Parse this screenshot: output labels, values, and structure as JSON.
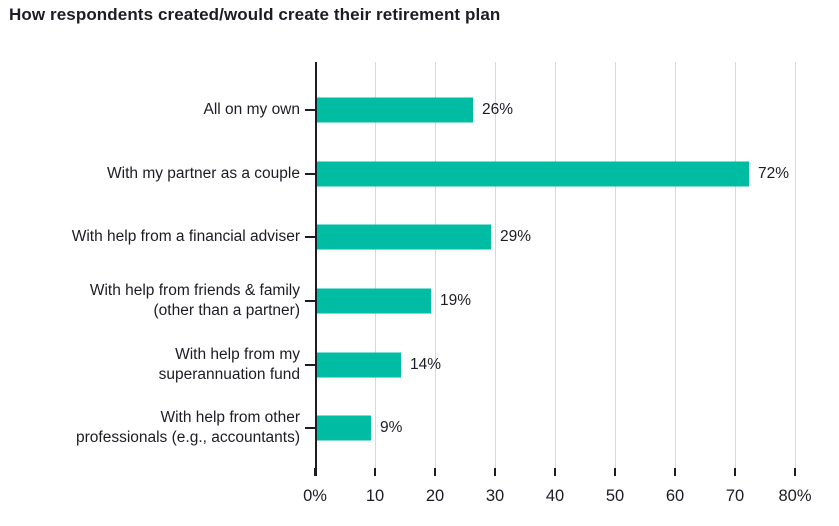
{
  "chart_data": {
    "type": "bar",
    "orientation": "horizontal",
    "title": "How respondents created/would create their retirement plan",
    "categories": [
      "All on my own",
      "With my partner as a couple",
      "With help from a financial adviser",
      "With help from friends & family\n(other than a partner)",
      "With help from my\nsuperannuation fund",
      "With help from other\nprofessionals (e.g., accountants)"
    ],
    "values": [
      26,
      72,
      29,
      19,
      14,
      9
    ],
    "value_labels": [
      "26%",
      "72%",
      "29%",
      "19%",
      "14%",
      "9%"
    ],
    "xlabel": "",
    "ylabel": "",
    "xlim": [
      0,
      80
    ],
    "xtick_values": [
      0,
      10,
      20,
      30,
      40,
      50,
      60,
      70,
      80
    ],
    "xtick_labels": [
      "0%",
      "10",
      "20",
      "30",
      "40",
      "50",
      "60",
      "70",
      "80%"
    ],
    "grid": "vertical",
    "legend": "none",
    "colors": {
      "bar": "#00bca2",
      "text": "#1c1c24",
      "gridline": "#d8d8d8"
    }
  }
}
